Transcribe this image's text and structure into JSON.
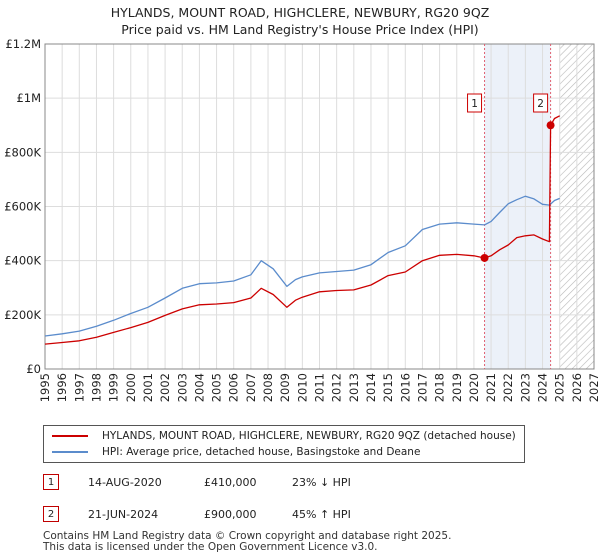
{
  "title": {
    "line1": "HYLANDS, MOUNT ROAD, HIGHCLERE, NEWBURY, RG20 9QZ",
    "line2": "Price paid vs. HM Land Registry's House Price Index (HPI)"
  },
  "colors": {
    "property": "#cc0000",
    "hpi": "#5b8ccc",
    "marker_line": "#e06070",
    "highlight": "#dde6f4"
  },
  "chart_data": {
    "type": "line",
    "x_range": [
      1995,
      2027
    ],
    "ylim": [
      0,
      1200000
    ],
    "y_ticks": [
      {
        "value": 0,
        "label": "£0"
      },
      {
        "value": 200000,
        "label": "£200K"
      },
      {
        "value": 400000,
        "label": "£400K"
      },
      {
        "value": 600000,
        "label": "£600K"
      },
      {
        "value": 800000,
        "label": "£800K"
      },
      {
        "value": 1000000,
        "label": "£1M"
      },
      {
        "value": 1200000,
        "label": "£1.2M"
      }
    ],
    "x_ticks": [
      "1995",
      "1996",
      "1997",
      "1998",
      "1999",
      "2000",
      "2001",
      "2002",
      "2003",
      "2004",
      "2005",
      "2006",
      "2007",
      "2008",
      "2009",
      "2010",
      "2011",
      "2012",
      "2013",
      "2014",
      "2015",
      "2016",
      "2017",
      "2018",
      "2019",
      "2020",
      "2021",
      "2022",
      "2023",
      "2024",
      "2025",
      "2026",
      "2027"
    ],
    "grid": true,
    "highlight_range": [
      2020.62,
      2024.47
    ],
    "future_from": 2025.0,
    "series": [
      {
        "name": "HYLANDS, MOUNT ROAD, HIGHCLERE, NEWBURY, RG20 9QZ (detached house)",
        "x": [
          1995,
          1996,
          1997,
          1998,
          1999,
          2000,
          2001,
          2002,
          2003,
          2004,
          2005,
          2006,
          2007,
          2007.6,
          2008.3,
          2009.1,
          2009.6,
          2010,
          2011,
          2012,
          2013,
          2014,
          2015,
          2016,
          2017,
          2018,
          2019,
          2020,
          2020.62,
          2021,
          2021.5,
          2022,
          2022.5,
          2023,
          2023.5,
          2024,
          2024.4,
          2024.47,
          2024.7,
          2025
        ],
        "values": [
          92000,
          98000,
          104000,
          117000,
          135000,
          153000,
          172000,
          198000,
          222000,
          237000,
          240000,
          245000,
          262000,
          298000,
          275000,
          228000,
          254000,
          265000,
          285000,
          290000,
          292000,
          310000,
          345000,
          358000,
          400000,
          420000,
          423000,
          418000,
          410000,
          418000,
          440000,
          458000,
          485000,
          492000,
          495000,
          480000,
          470000,
          900000,
          925000,
          935000
        ]
      },
      {
        "name": "HPI: Average price, detached house, Basingstoke and Deane",
        "x": [
          1995,
          1996,
          1997,
          1998,
          1999,
          2000,
          2001,
          2002,
          2003,
          2004,
          2005,
          2006,
          2007,
          2007.6,
          2008.3,
          2009.1,
          2009.6,
          2010,
          2011,
          2012,
          2013,
          2014,
          2015,
          2016,
          2017,
          2018,
          2019,
          2020,
          2020.62,
          2021,
          2021.5,
          2022,
          2022.5,
          2023,
          2023.5,
          2024,
          2024.4,
          2024.7,
          2025
        ],
        "values": [
          122000,
          130000,
          140000,
          158000,
          180000,
          205000,
          228000,
          262000,
          298000,
          315000,
          318000,
          325000,
          348000,
          400000,
          370000,
          305000,
          330000,
          340000,
          355000,
          360000,
          365000,
          385000,
          430000,
          455000,
          515000,
          535000,
          540000,
          535000,
          532000,
          545000,
          578000,
          610000,
          625000,
          638000,
          628000,
          608000,
          605000,
          622000,
          630000
        ]
      }
    ],
    "transactions": [
      {
        "id": "1",
        "date": "14-AUG-2020",
        "x": 2020.62,
        "price": "£410,000",
        "value": 410000,
        "hpi": "23% ↓ HPI"
      },
      {
        "id": "2",
        "date": "21-JUN-2024",
        "x": 2024.47,
        "price": "£900,000",
        "value": 900000,
        "hpi": "45% ↑ HPI"
      }
    ]
  },
  "legend": {
    "property": "HYLANDS, MOUNT ROAD, HIGHCLERE, NEWBURY, RG20 9QZ (detached house)",
    "hpi": "HPI: Average price, detached house, Basingstoke and Deane"
  },
  "footer": {
    "line1": "Contains HM Land Registry data © Crown copyright and database right 2025.",
    "line2": "This data is licensed under the Open Government Licence v3.0."
  }
}
